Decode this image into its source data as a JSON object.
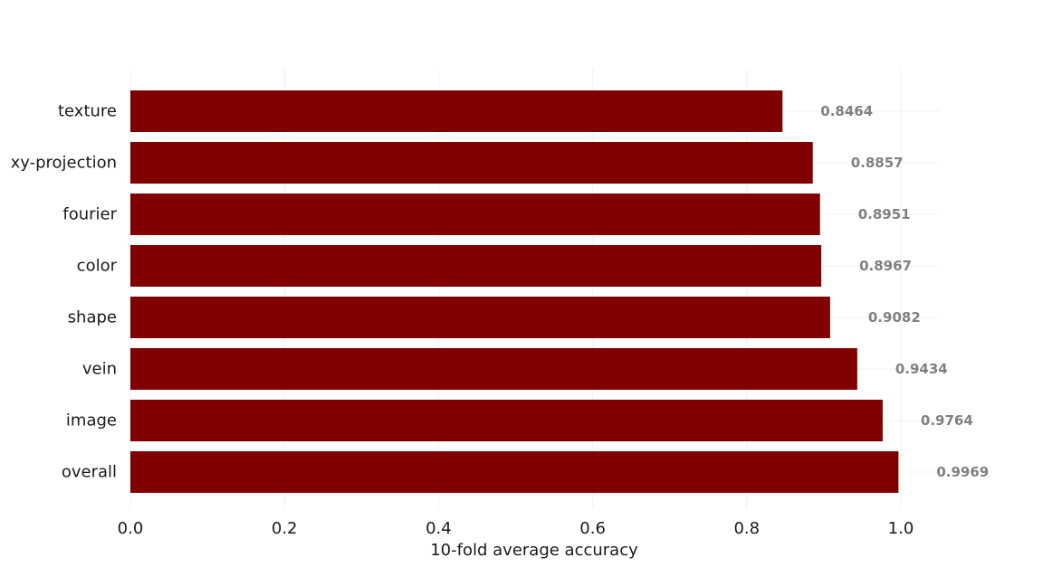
{
  "chart_data": {
    "type": "bar",
    "orientation": "horizontal",
    "categories": [
      "texture",
      "xy-projection",
      "fourier",
      "color",
      "shape",
      "vein",
      "image",
      "overall"
    ],
    "values": [
      0.8464,
      0.8857,
      0.8951,
      0.8967,
      0.9082,
      0.9434,
      0.9764,
      0.9969
    ],
    "value_labels": [
      "0.8464",
      "0.8857",
      "0.8951",
      "0.8967",
      "0.9082",
      "0.9434",
      "0.9764",
      "0.9969"
    ],
    "xlabel": "10-fold average accuracy",
    "ylabel": "",
    "xlim": [
      0,
      1.05
    ],
    "xticks": [
      0.0,
      0.2,
      0.4,
      0.6,
      0.8,
      1.0
    ],
    "xtick_labels": [
      "0.0",
      "0.2",
      "0.4",
      "0.6",
      "0.8",
      "1.0"
    ],
    "grid": true,
    "colors": {
      "bar": "#800000",
      "value_label": "#808080"
    }
  }
}
